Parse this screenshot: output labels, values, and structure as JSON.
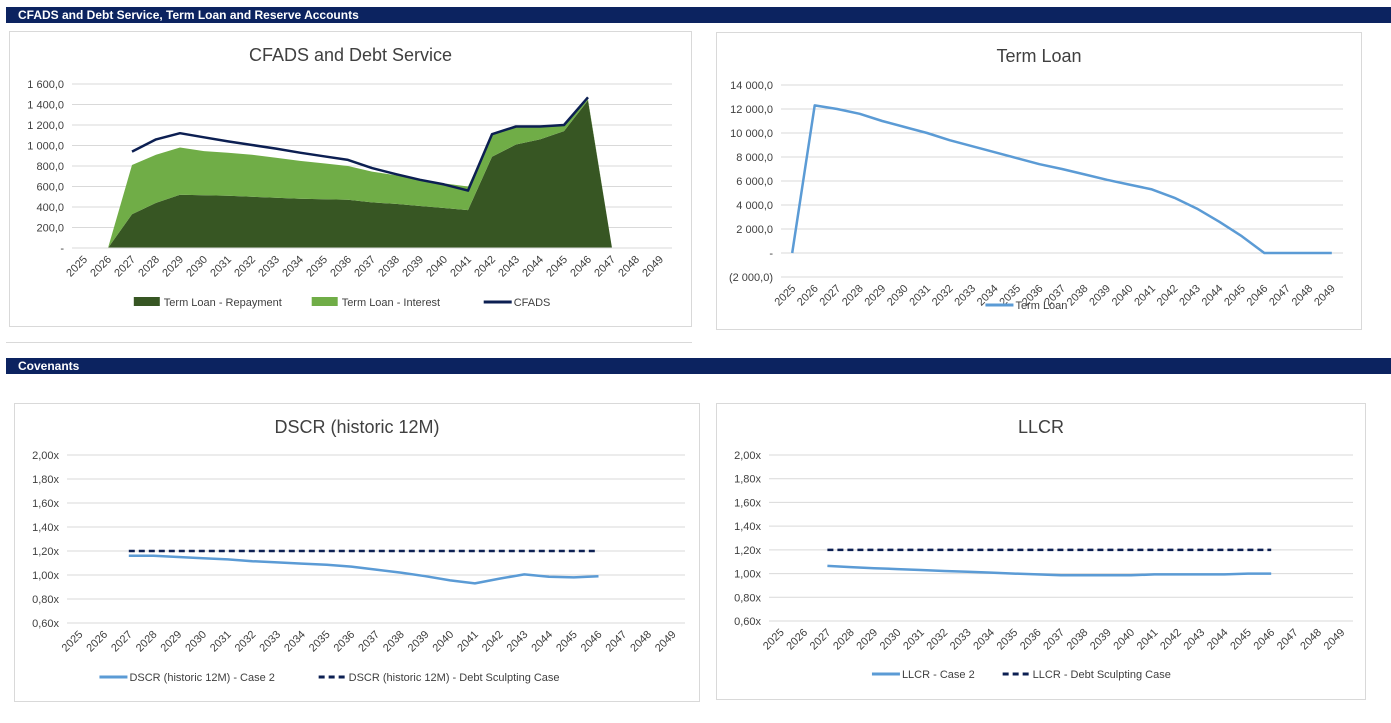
{
  "header": {
    "section1_title": "CFADS and Debt Service, Term Loan and Reserve Accounts",
    "section2_title": "Covenants"
  },
  "chart_data": [
    {
      "type": "area",
      "title": "CFADS and Debt Service",
      "categories": [
        "2025",
        "2026",
        "2027",
        "2028",
        "2029",
        "2030",
        "2031",
        "2032",
        "2033",
        "2034",
        "2035",
        "2036",
        "2037",
        "2038",
        "2039",
        "2040",
        "2041",
        "2042",
        "2043",
        "2044",
        "2045",
        "2046",
        "2047",
        "2048",
        "2049"
      ],
      "ylim": [
        0,
        1600
      ],
      "yticks": [
        "-",
        "200,0",
        "400,0",
        "600,0",
        "800,0",
        "1 000,0",
        "1 200,0",
        "1 400,0",
        "1 600,0"
      ],
      "series": [
        {
          "name": "Term Loan - Repayment",
          "kind": "area",
          "color": "#375623",
          "values": [
            null,
            0,
            330,
            440,
            520,
            515,
            510,
            500,
            490,
            480,
            475,
            470,
            445,
            430,
            410,
            390,
            370,
            890,
            1010,
            1060,
            1140,
            1440,
            0,
            null,
            null
          ]
        },
        {
          "name": "Term Loan - Interest",
          "kind": "area",
          "color": "#70ad47",
          "values": [
            null,
            0,
            480,
            470,
            460,
            430,
            420,
            410,
            390,
            370,
            350,
            330,
            300,
            280,
            260,
            240,
            230,
            210,
            170,
            120,
            60,
            10,
            0,
            null,
            null
          ]
        },
        {
          "name": "CFADS",
          "kind": "line",
          "color": "#0c1f52",
          "values": [
            null,
            null,
            940,
            1060,
            1120,
            1080,
            1040,
            1005,
            970,
            930,
            895,
            860,
            780,
            720,
            665,
            620,
            560,
            1110,
            1185,
            1185,
            1200,
            1470,
            null,
            null,
            null
          ]
        }
      ]
    },
    {
      "type": "line",
      "title": "Term Loan",
      "categories": [
        "2025",
        "2026",
        "2027",
        "2028",
        "2029",
        "2030",
        "2031",
        "2032",
        "2033",
        "2034",
        "2035",
        "2036",
        "2037",
        "2038",
        "2039",
        "2040",
        "2041",
        "2042",
        "2043",
        "2044",
        "2045",
        "2046",
        "2047",
        "2048",
        "2049"
      ],
      "ylim": [
        -2000,
        14000
      ],
      "yticks": [
        "(2 000,0)",
        "-",
        "2 000,0",
        "4 000,0",
        "6 000,0",
        "8 000,0",
        "10 000,0",
        "12 000,0",
        "14 000,0"
      ],
      "series": [
        {
          "name": "Term Loan",
          "color": "#5b9bd5",
          "values": [
            0,
            12300,
            12000,
            11600,
            11000,
            10500,
            10000,
            9400,
            8900,
            8400,
            7900,
            7400,
            7000,
            6550,
            6100,
            5700,
            5300,
            4600,
            3700,
            2600,
            1400,
            0,
            0,
            0,
            0
          ]
        }
      ]
    },
    {
      "type": "line",
      "title": "DSCR (historic 12M)",
      "categories": [
        "2025",
        "2026",
        "2027",
        "2028",
        "2029",
        "2030",
        "2031",
        "2032",
        "2033",
        "2034",
        "2035",
        "2036",
        "2037",
        "2038",
        "2039",
        "2040",
        "2041",
        "2042",
        "2043",
        "2044",
        "2045",
        "2046",
        "2047",
        "2048",
        "2049"
      ],
      "ylim": [
        0.6,
        2.0
      ],
      "yticks": [
        "0,60x",
        "0,80x",
        "1,00x",
        "1,20x",
        "1,40x",
        "1,60x",
        "1,80x",
        "2,00x"
      ],
      "series": [
        {
          "name": "DSCR (historic 12M) - Case 2",
          "color": "#5b9bd5",
          "dash": false,
          "values": [
            null,
            null,
            1.16,
            1.16,
            1.15,
            1.14,
            1.13,
            1.115,
            1.105,
            1.095,
            1.085,
            1.07,
            1.045,
            1.02,
            0.99,
            0.955,
            0.93,
            0.97,
            1.005,
            0.985,
            0.98,
            0.99,
            null,
            null,
            null
          ]
        },
        {
          "name": "DSCR (historic 12M) - Debt Sculpting Case",
          "color": "#0c1f52",
          "dash": true,
          "values": [
            null,
            null,
            1.2,
            1.2,
            1.2,
            1.2,
            1.2,
            1.2,
            1.2,
            1.2,
            1.2,
            1.2,
            1.2,
            1.2,
            1.2,
            1.2,
            1.2,
            1.2,
            1.2,
            1.2,
            1.2,
            1.2,
            null,
            null,
            null
          ]
        }
      ]
    },
    {
      "type": "line",
      "title": "LLCR",
      "categories": [
        "2025",
        "2026",
        "2027",
        "2028",
        "2029",
        "2030",
        "2031",
        "2032",
        "2033",
        "2034",
        "2035",
        "2036",
        "2037",
        "2038",
        "2039",
        "2040",
        "2041",
        "2042",
        "2043",
        "2044",
        "2045",
        "2046",
        "2047",
        "2048",
        "2049"
      ],
      "ylim": [
        0.6,
        2.0
      ],
      "yticks": [
        "0,60x",
        "0,80x",
        "1,00x",
        "1,20x",
        "1,40x",
        "1,60x",
        "1,80x",
        "2,00x"
      ],
      "series": [
        {
          "name": "LLCR - Case 2",
          "color": "#5b9bd5",
          "dash": false,
          "values": [
            null,
            null,
            1.065,
            1.055,
            1.045,
            1.038,
            1.03,
            1.022,
            1.015,
            1.008,
            1.0,
            0.993,
            0.985,
            0.985,
            0.985,
            0.985,
            0.993,
            0.993,
            0.993,
            0.993,
            1.0,
            1.0,
            null,
            null,
            null
          ]
        },
        {
          "name": "LLCR - Debt Sculpting Case",
          "color": "#0c1f52",
          "dash": true,
          "values": [
            null,
            null,
            1.2,
            1.2,
            1.2,
            1.2,
            1.2,
            1.2,
            1.2,
            1.2,
            1.2,
            1.2,
            1.2,
            1.2,
            1.2,
            1.2,
            1.2,
            1.2,
            1.2,
            1.2,
            1.2,
            1.2,
            null,
            null,
            null
          ]
        }
      ]
    }
  ]
}
